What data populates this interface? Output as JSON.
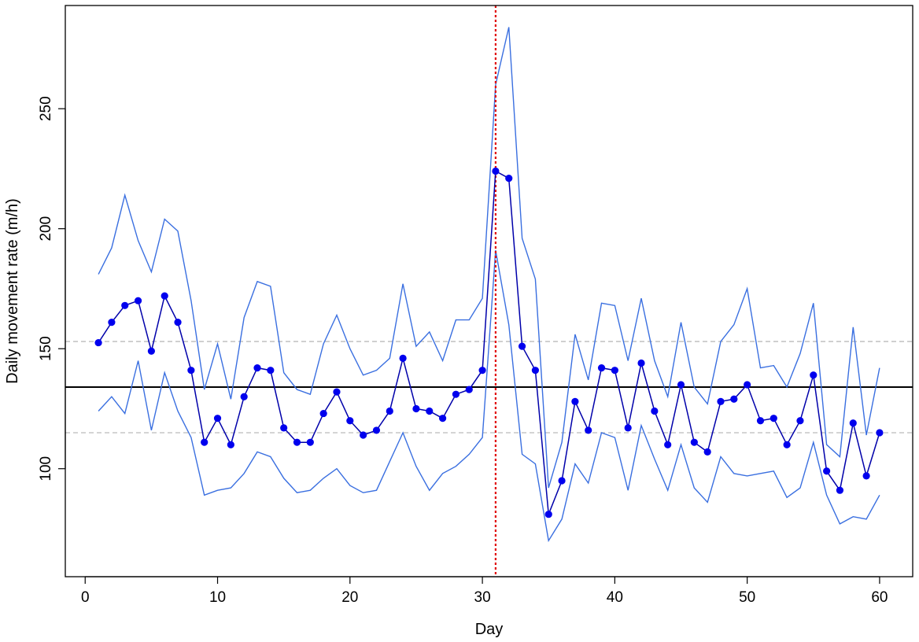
{
  "chart_data": {
    "type": "line",
    "title": "",
    "xlabel": "Day",
    "ylabel": "Daily movement rate (m/h)",
    "xlim": [
      -1.5,
      62.5
    ],
    "ylim": [
      55,
      293
    ],
    "x_ticks": [
      0,
      10,
      20,
      30,
      40,
      50,
      60
    ],
    "y_ticks": [
      100,
      150,
      200,
      250
    ],
    "grid": false,
    "legend": "none",
    "x": [
      1,
      2,
      3,
      4,
      5,
      6,
      7,
      8,
      9,
      10,
      11,
      12,
      13,
      14,
      15,
      16,
      17,
      18,
      19,
      20,
      21,
      22,
      23,
      24,
      25,
      26,
      27,
      28,
      29,
      30,
      31,
      32,
      33,
      34,
      35,
      36,
      37,
      38,
      39,
      40,
      41,
      42,
      43,
      44,
      45,
      46,
      47,
      48,
      49,
      50,
      51,
      52,
      53,
      54,
      55,
      56,
      57,
      58,
      59,
      60
    ],
    "series": [
      {
        "role": "mean",
        "color": "#0000ee",
        "line_color": "#0000aa",
        "markers": true,
        "values": [
          152.5,
          161,
          168,
          170,
          149,
          172,
          161,
          141,
          111,
          121,
          110,
          130,
          142,
          141,
          117,
          111,
          111,
          123,
          132,
          120,
          114,
          116,
          124,
          146,
          125,
          124,
          121,
          131,
          133,
          141,
          224,
          221,
          151,
          141,
          81,
          95,
          128,
          116,
          142,
          141,
          117,
          144,
          124,
          110,
          135,
          111,
          107,
          128,
          129,
          135,
          120,
          121,
          110,
          120,
          139,
          99,
          91,
          119,
          97,
          115
        ]
      },
      {
        "role": "upper",
        "color": "#3a6fe0",
        "values": [
          181,
          192,
          214,
          195,
          182,
          204,
          199,
          170,
          133,
          152,
          129,
          163,
          178,
          176,
          140,
          133,
          131,
          152,
          164,
          150,
          139,
          141,
          146,
          177,
          151,
          157,
          145,
          162,
          162,
          171,
          260,
          284,
          196,
          179,
          92,
          111,
          156,
          137,
          169,
          168,
          145,
          171,
          145,
          130,
          161,
          134,
          127,
          153,
          160,
          175,
          142,
          143,
          134,
          148,
          169,
          110,
          105,
          159,
          114,
          142
        ]
      },
      {
        "role": "lower",
        "color": "#3a6fe0",
        "values": [
          124,
          130,
          123,
          145,
          116,
          140,
          124,
          113,
          89,
          91,
          92,
          98,
          107,
          105,
          96,
          90,
          91,
          96,
          100,
          93,
          90,
          91,
          103,
          115,
          101,
          91,
          98,
          101,
          106,
          113,
          191,
          160,
          106,
          102,
          70,
          79,
          102,
          94,
          115,
          113,
          91,
          118,
          104,
          91,
          110,
          92,
          86,
          105,
          98,
          97,
          98,
          99,
          88,
          92,
          111,
          89,
          77,
          80,
          79,
          89
        ]
      }
    ],
    "hlines": [
      {
        "y": 134,
        "color": "#000000",
        "style": "solid"
      },
      {
        "y": 153,
        "color": "#bbbbbb",
        "style": "dashed"
      },
      {
        "y": 115,
        "color": "#bbbbbb",
        "style": "dashed"
      }
    ],
    "vlines": [
      {
        "x": 31,
        "color": "#e00000",
        "style": "dotted"
      }
    ]
  }
}
